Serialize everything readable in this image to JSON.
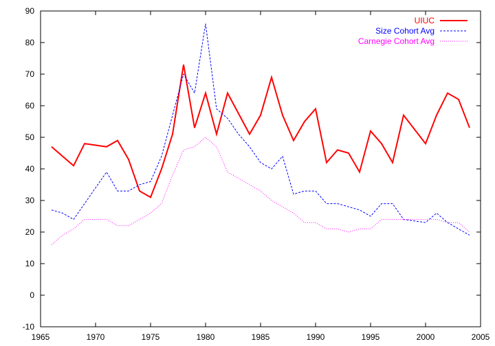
{
  "chart_data": {
    "type": "line",
    "title": "",
    "xlabel": "",
    "ylabel": "",
    "xlim": [
      1965,
      2005
    ],
    "ylim": [
      -10,
      90
    ],
    "xticks": [
      1965,
      1970,
      1975,
      1980,
      1985,
      1990,
      1995,
      2000,
      2005
    ],
    "yticks": [
      -10,
      0,
      10,
      20,
      30,
      40,
      50,
      60,
      70,
      80,
      90
    ],
    "grid": false,
    "legend_position": "top-right",
    "series": [
      {
        "name": "UIUC",
        "color": "#ff0000",
        "style": "solid",
        "x": [
          1966,
          1967,
          1968,
          1969,
          1970,
          1971,
          1972,
          1973,
          1974,
          1975,
          1976,
          1977,
          1978,
          1979,
          1980,
          1981,
          1982,
          1983,
          1984,
          1985,
          1986,
          1987,
          1988,
          1989,
          1990,
          1991,
          1992,
          1993,
          1994,
          1995,
          1996,
          1997,
          1998,
          1999,
          2000,
          2001,
          2002,
          2003,
          2004
        ],
        "y": [
          47,
          44,
          41,
          48,
          47.5,
          47,
          49,
          43,
          33,
          31,
          40,
          51,
          73,
          53,
          64,
          51,
          64,
          57.5,
          51,
          57,
          69,
          57,
          49,
          55,
          59,
          42,
          46,
          45,
          39,
          52,
          48,
          42,
          57,
          52.5,
          48,
          57,
          64,
          62,
          53
        ]
      },
      {
        "name": "Size Cohort Avg",
        "color": "#0000ff",
        "style": "dashed",
        "x": [
          1966,
          1967,
          1968,
          1969,
          1970,
          1971,
          1972,
          1973,
          1974,
          1975,
          1976,
          1977,
          1978,
          1979,
          1980,
          1981,
          1982,
          1983,
          1984,
          1985,
          1986,
          1987,
          1988,
          1989,
          1990,
          1991,
          1992,
          1993,
          1994,
          1995,
          1996,
          1997,
          1998,
          1999,
          2000,
          2001,
          2002,
          2003,
          2004
        ],
        "y": [
          27,
          26,
          24,
          29,
          34,
          39,
          33,
          33,
          35,
          36,
          44,
          57,
          70,
          64,
          86,
          59,
          56,
          51,
          47,
          42,
          40,
          44,
          32,
          33,
          33,
          29,
          29,
          28,
          27,
          25,
          29,
          29,
          24,
          23.5,
          23,
          26,
          23,
          21,
          19
        ]
      },
      {
        "name": "Carnegie Cohort Avg",
        "color": "#ff00ff",
        "style": "dotted",
        "x": [
          1966,
          1967,
          1968,
          1969,
          1970,
          1971,
          1972,
          1973,
          1974,
          1975,
          1976,
          1977,
          1978,
          1979,
          1980,
          1981,
          1982,
          1983,
          1984,
          1985,
          1986,
          1987,
          1988,
          1989,
          1990,
          1991,
          1992,
          1993,
          1994,
          1995,
          1996,
          1997,
          1998,
          1999,
          2000,
          2001,
          2002,
          2003,
          2004
        ],
        "y": [
          16,
          19,
          21,
          24,
          24,
          24,
          22,
          22,
          24,
          26,
          29,
          38,
          46,
          47,
          50,
          47,
          39,
          37,
          35,
          33,
          30,
          28,
          26,
          23,
          23,
          21,
          21,
          20,
          21,
          21,
          24,
          24,
          24,
          24,
          24,
          24,
          23,
          23,
          20
        ]
      }
    ]
  }
}
